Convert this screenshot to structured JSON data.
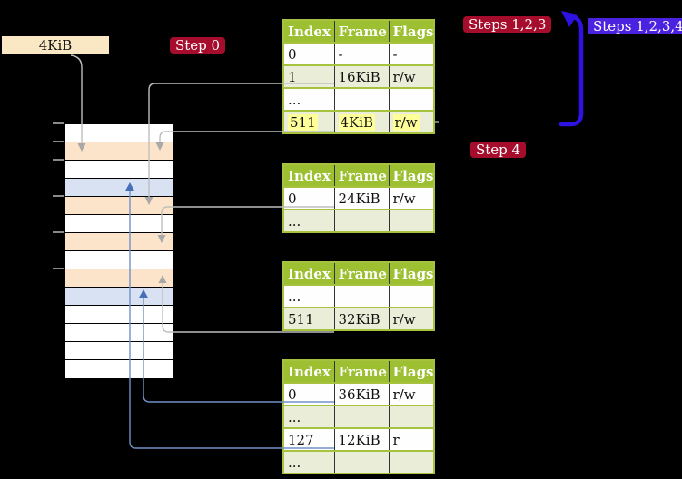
{
  "diagram": {
    "background": "#000000",
    "page_size_box": {
      "label": "4KiB",
      "bg": "#FAE8C5"
    },
    "badges": {
      "step0": {
        "label": "Step 0",
        "bg": "#A60D2C"
      },
      "steps123": {
        "label": "Steps 1,2,3",
        "bg": "#A60D2C"
      },
      "steps1234": {
        "label": "Steps 1,2,3,4",
        "bg": "#4A22DF"
      },
      "step4": {
        "label": "Step 4",
        "bg": "#A60D2C"
      }
    },
    "memory_column": {
      "row_colors": [
        "white",
        "peach",
        "white",
        "blue",
        "peach",
        "white",
        "peach",
        "white",
        "peach",
        "blue",
        "white",
        "white",
        "white",
        "white"
      ],
      "tick_rows": [
        0,
        1,
        2,
        4,
        6,
        8
      ],
      "palette": {
        "white": "#FFFFFF",
        "peach": "#FCE4CA",
        "blue": "#D8E2F2"
      }
    },
    "tables": [
      {
        "name": "page-table-1",
        "headers": [
          "Index",
          "Frame",
          "Flags"
        ],
        "rows": [
          {
            "cells": [
              "0",
              "-",
              "-"
            ]
          },
          {
            "cells": [
              "1",
              "16KiB",
              "r/w"
            ]
          },
          {
            "cells": [
              "...",
              "",
              ""
            ]
          },
          {
            "cells": [
              "511",
              "4KiB",
              "r/w"
            ],
            "highlight": true
          }
        ]
      },
      {
        "name": "page-table-2",
        "headers": [
          "Index",
          "Frame",
          "Flags"
        ],
        "rows": [
          {
            "cells": [
              "0",
              "24KiB",
              "r/w"
            ]
          },
          {
            "cells": [
              "...",
              "",
              ""
            ]
          }
        ]
      },
      {
        "name": "page-table-3",
        "headers": [
          "Index",
          "Frame",
          "Flags"
        ],
        "rows": [
          {
            "cells": [
              "...",
              "",
              ""
            ]
          },
          {
            "cells": [
              "511",
              "32KiB",
              "r/w"
            ]
          }
        ]
      },
      {
        "name": "page-table-4",
        "headers": [
          "Index",
          "Frame",
          "Flags"
        ],
        "rows": [
          {
            "cells": [
              "0",
              "36KiB",
              "r/w"
            ]
          },
          {
            "cells": [
              "...",
              "",
              ""
            ]
          },
          {
            "cells": [
              "127",
              "12KiB",
              "r"
            ]
          },
          {
            "cells": [
              "...",
              "",
              ""
            ]
          }
        ]
      }
    ],
    "connectors": [
      {
        "id": "box-4kib-to-frame",
        "from": "4KiB box",
        "to": "memory row 2 (4KiB frame)",
        "color": "gray"
      },
      {
        "id": "t1-entry-1",
        "from": "table 1 index 1 (16KiB)",
        "to": "memory row 5 (16KiB frame)",
        "color": "gray"
      },
      {
        "id": "t1-entry-511",
        "from": "table 1 index 511 (4KiB)",
        "to": "memory row 2 (4KiB frame)",
        "color": "gray"
      },
      {
        "id": "t2-entry-0",
        "from": "table 2 index 0 (24KiB)",
        "to": "memory row 7 (24KiB frame)",
        "color": "gray"
      },
      {
        "id": "t3-entry-511",
        "from": "table 3 index 511 (32KiB)",
        "to": "memory row 9 (32KiB frame)",
        "color": "gray"
      },
      {
        "id": "t4-entry-0",
        "from": "table 4 index 0 (36KiB)",
        "to": "memory row 10 (36KiB frame)",
        "color": "blue"
      },
      {
        "id": "t4-entry-127",
        "from": "table 4 index 127 (12KiB)",
        "to": "memory row 4 (12KiB frame)",
        "color": "blue"
      },
      {
        "id": "steps-1234-loop",
        "from": "below step 4 label",
        "to": "table 1 (repeat walk)",
        "color": "blue-violet"
      }
    ],
    "colors": {
      "table_header_bg": "#9CC031",
      "table_border": "#A6C23F",
      "table_alt_row": "#EAEED8",
      "highlight": "#FFFF99",
      "connector_gray": "#BEBEBE",
      "connector_blue": "#7290C8",
      "connector_blue_head": "#4870B8",
      "arrow_blue_violet": "#2E12E2",
      "badge_red": "#A60D2C",
      "badge_blue": "#4A22DF"
    }
  }
}
